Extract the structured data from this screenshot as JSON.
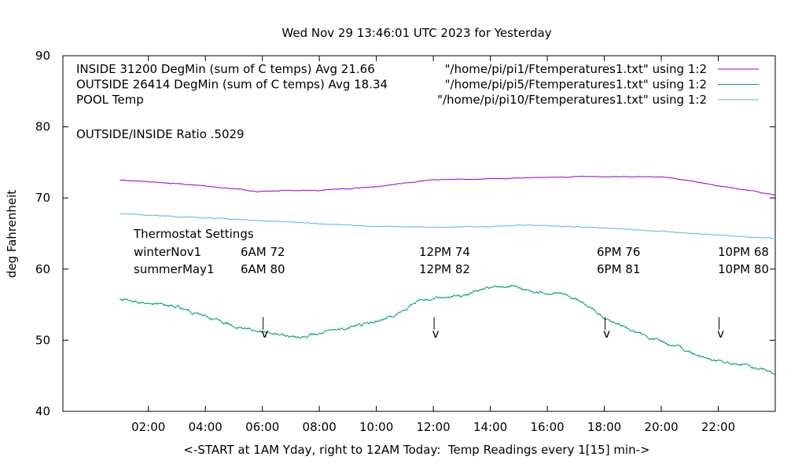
{
  "chart_data": {
    "type": "line",
    "title": "Wed Nov 29 13:46:01 UTC 2023 for Yesterday",
    "xlabel": "<-START at 1AM Yday, right to 12AM Today:  Temp Readings every 1[15] min->",
    "ylabel": "deg Fahrenheit",
    "xlim": [
      0,
      24
    ],
    "ylim": [
      40,
      90
    ],
    "x_unit": "hour of day",
    "x_ticks": [
      "02:00",
      "04:00",
      "06:00",
      "08:00",
      "10:00",
      "12:00",
      "14:00",
      "16:00",
      "18:00",
      "20:00",
      "22:00"
    ],
    "y_ticks": [
      "40",
      "50",
      "60",
      "70",
      "80",
      "90"
    ],
    "grid": false,
    "legend_position": "top-right",
    "series": [
      {
        "name": "INSIDE 31200 DegMin (sum of C temps) Avg 21.66",
        "legend_file": "\"/home/pi/pi1/Ftemperatures1.txt\" using 1:2",
        "color": "#9400d3",
        "x": [
          1.0,
          2.0,
          3.0,
          4.0,
          5.0,
          5.8,
          6.5,
          8.0,
          9.0,
          10.0,
          11.0,
          12.0,
          13.0,
          14.0,
          15.0,
          16.0,
          17.0,
          18.0,
          19.0,
          20.0,
          21.0,
          22.0,
          23.0,
          24.0
        ],
        "y": [
          72.5,
          72.3,
          72.0,
          71.7,
          71.3,
          70.9,
          71.0,
          71.1,
          71.3,
          71.6,
          72.1,
          72.6,
          72.6,
          72.7,
          72.8,
          72.9,
          73.0,
          73.0,
          73.0,
          73.0,
          72.4,
          71.7,
          71.1,
          70.4
        ]
      },
      {
        "name": "OUTSIDE 26414 DegMin (sum of C temps) Avg 18.34",
        "legend_file": "\"/home/pi/pi5/Ftemperatures1.txt\" using 1:2",
        "color": "#009e73",
        "x": [
          1.0,
          1.5,
          2.0,
          3.0,
          4.0,
          5.0,
          6.0,
          6.5,
          7.0,
          7.5,
          8.0,
          9.0,
          10.0,
          11.0,
          11.5,
          12.0,
          12.5,
          13.0,
          13.5,
          14.0,
          14.5,
          15.0,
          15.5,
          16.0,
          16.5,
          17.0,
          17.5,
          18.0,
          19.0,
          20.0,
          21.0,
          22.0,
          23.0,
          24.0
        ],
        "y": [
          55.8,
          55.5,
          55.2,
          54.7,
          53.3,
          52.1,
          51.1,
          50.8,
          50.5,
          50.6,
          50.9,
          51.8,
          52.6,
          54.2,
          55.8,
          55.8,
          56.2,
          56.2,
          57.0,
          57.3,
          57.6,
          57.3,
          56.8,
          56.7,
          56.6,
          55.9,
          54.5,
          53.2,
          51.3,
          49.8,
          48.4,
          47.0,
          46.4,
          45.3
        ]
      },
      {
        "name": "POOL Temp",
        "legend_file": "\"/home/pi/pi10/Ftemperatures1.txt\" using 1:2",
        "color": "#56b4e9",
        "x": [
          1.0,
          2.0,
          4.0,
          6.0,
          8.0,
          10.0,
          12.0,
          14.0,
          15.0,
          16.0,
          18.0,
          20.0,
          22.0,
          24.0
        ],
        "y": [
          67.8,
          67.6,
          67.2,
          66.8,
          66.4,
          66.0,
          65.9,
          66.0,
          66.2,
          66.1,
          65.8,
          65.3,
          64.8,
          64.3
        ]
      }
    ],
    "annotations": {
      "ratio": "OUTSIDE/INSIDE Ratio .5029",
      "thermostat_heading": "Thermostat Settings",
      "rows": [
        {
          "label": "winterNov1",
          "settings": [
            "6AM 72",
            "12PM 74",
            "6PM 76",
            "10PM 68"
          ]
        },
        {
          "label": "summerMay1",
          "settings": [
            "6AM 80",
            "12PM 82",
            "6PM 81",
            "10PM 80"
          ]
        }
      ],
      "arrow_hours": [
        6,
        12,
        18,
        22
      ],
      "arrow_glyph": "v"
    }
  }
}
